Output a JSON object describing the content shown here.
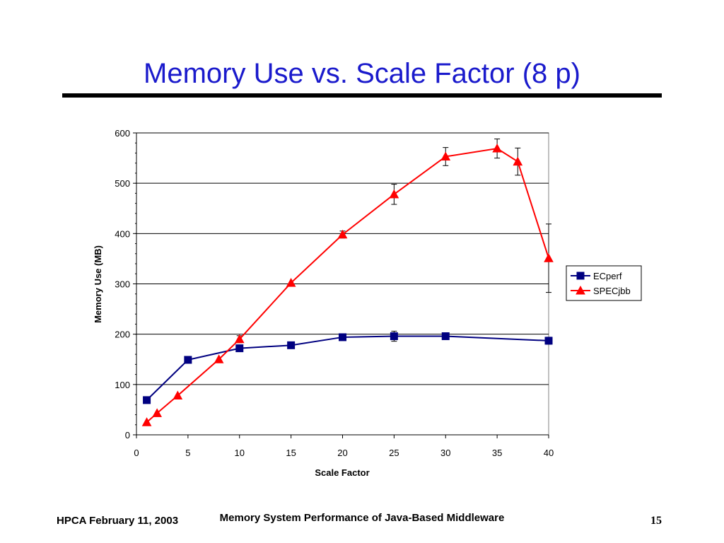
{
  "slide": {
    "title": "Memory Use vs. Scale Factor (8 p)",
    "footer_left": "HPCA February 11, 2003",
    "footer_center": "Memory System Performance of Java-Based Middleware",
    "footer_right": "15"
  },
  "chart_data": {
    "type": "line",
    "title": "",
    "xlabel": "Scale Factor",
    "ylabel": "Memory Use (MB)",
    "xlim": [
      0,
      40
    ],
    "ylim": [
      0,
      600
    ],
    "xticks": [
      0,
      5,
      10,
      15,
      20,
      25,
      30,
      35,
      40
    ],
    "yticks": [
      0,
      100,
      200,
      300,
      400,
      500,
      600
    ],
    "grid": "horizontal",
    "legend": "right",
    "series": [
      {
        "name": "ECperf",
        "color": "#000080",
        "marker": "square",
        "x": [
          1,
          5,
          10,
          15,
          20,
          25,
          30,
          40
        ],
        "y": [
          69,
          149,
          172,
          178,
          194,
          196,
          196,
          187
        ],
        "err": [
          0,
          0,
          3,
          6,
          3,
          10,
          6,
          7
        ]
      },
      {
        "name": "SPECjbb",
        "color": "#ff0000",
        "marker": "triangle",
        "x": [
          1,
          2,
          4,
          8,
          10,
          15,
          20,
          25,
          30,
          35,
          37,
          40
        ],
        "y": [
          25,
          43,
          78,
          150,
          190,
          302,
          398,
          478,
          553,
          569,
          543,
          351
        ],
        "err": [
          0,
          0,
          0,
          0,
          7,
          0,
          7,
          20,
          18,
          19,
          27,
          68
        ]
      }
    ]
  }
}
